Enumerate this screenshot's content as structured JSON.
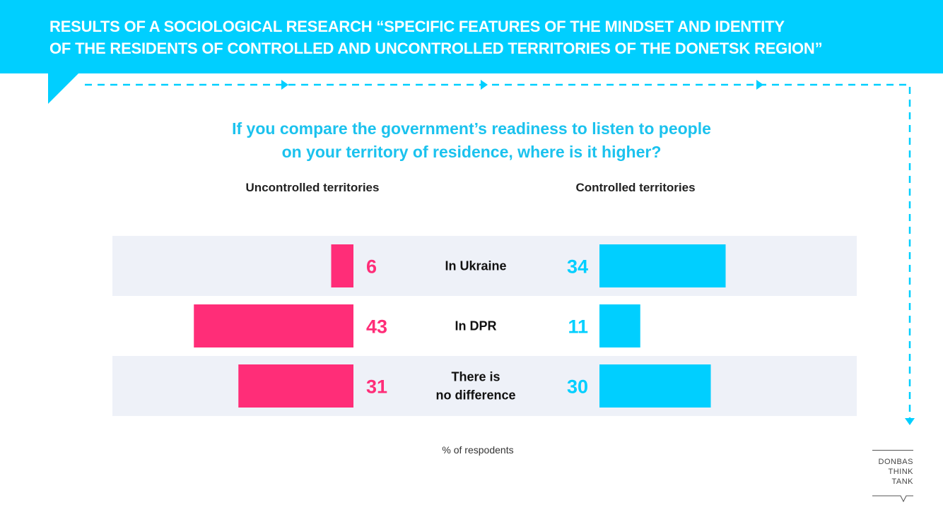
{
  "header": {
    "title": "RESULTS OF A SOCIOLOGICAL RESEARCH “SPECIFIC FEATURES OF THE MINDSET AND IDENTITY\nOF THE RESIDENTS OF CONTROLLED AND UNCONTROLLED TERRITORIES OF THE DONETSK REGION”"
  },
  "chart_data": {
    "type": "bar",
    "title": "If you compare the government’s readiness to listen to people\non your territory of residence, where is it higher?",
    "categories": [
      "In Ukraine",
      "In DPR",
      "There is\nno difference"
    ],
    "series": [
      {
        "name": "Uncontrolled territories",
        "values": [
          6,
          43,
          31
        ],
        "color": "#ff2d78"
      },
      {
        "name": "Controlled territories",
        "values": [
          34,
          11,
          30
        ],
        "color": "#00cfff"
      }
    ],
    "unit_label": "% of respodents",
    "layout": "butterfly"
  },
  "colors": {
    "accent": "#00cfff",
    "pink": "#ff2d78",
    "row_band": "#eef1f8"
  },
  "logo": {
    "lines": [
      "DONBAS",
      "THINK",
      "TANK"
    ]
  }
}
